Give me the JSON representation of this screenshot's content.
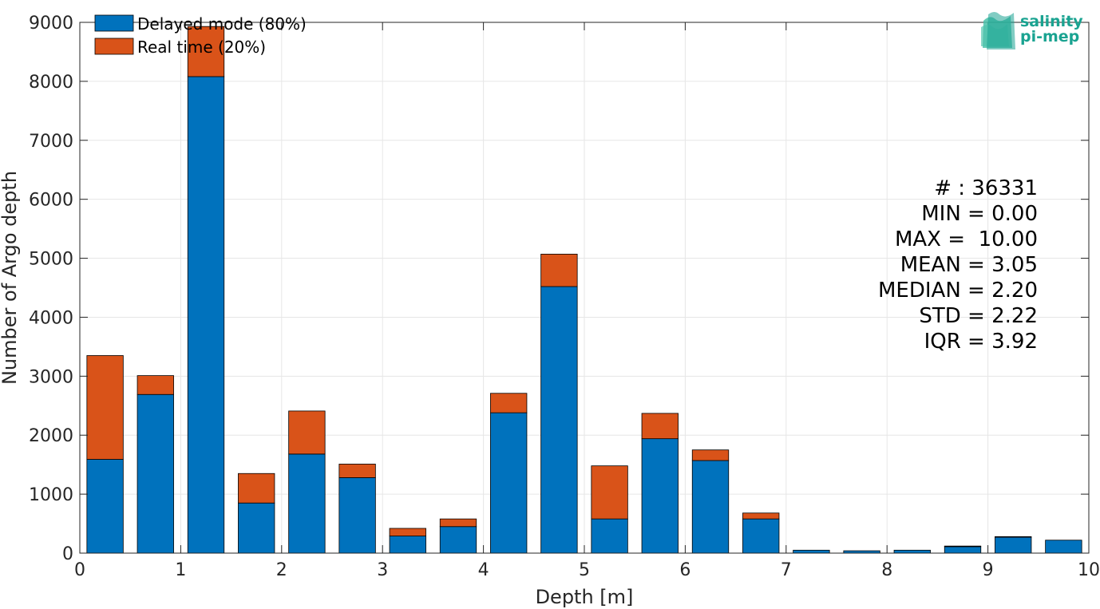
{
  "chart_data": {
    "type": "bar",
    "stacked": true,
    "xlabel": "Depth [m]",
    "ylabel": "Number of Argo depth",
    "xlim": [
      0,
      10
    ],
    "ylim": [
      0,
      9000
    ],
    "xticks": [
      "0",
      "1",
      "2",
      "3",
      "4",
      "5",
      "6",
      "7",
      "8",
      "9",
      "10"
    ],
    "yticks": [
      "0",
      "1000",
      "2000",
      "3000",
      "4000",
      "5000",
      "6000",
      "7000",
      "8000",
      "9000"
    ],
    "grid": true,
    "legend_position": "top-left",
    "bin_width": 0.5,
    "bin_centers": [
      0.25,
      0.75,
      1.25,
      1.75,
      2.25,
      2.75,
      3.25,
      3.75,
      4.25,
      4.75,
      5.25,
      5.75,
      6.25,
      6.75,
      7.25,
      7.75,
      8.25,
      8.75,
      9.25,
      9.75
    ],
    "series": [
      {
        "name": "Delayed mode (80%)",
        "color": "#0072BD",
        "values": [
          1590,
          2690,
          8080,
          850,
          1680,
          1280,
          290,
          450,
          2380,
          4520,
          580,
          1940,
          1570,
          580,
          50,
          40,
          50,
          110,
          270,
          220
        ]
      },
      {
        "name": "Real time (20%)",
        "color": "#D95319",
        "values": [
          1760,
          320,
          850,
          500,
          730,
          230,
          130,
          130,
          330,
          550,
          900,
          430,
          180,
          100,
          0,
          0,
          0,
          10,
          10,
          0
        ]
      }
    ],
    "annotations": [
      "# : 36331",
      "MIN = 0.00",
      "MAX =  10.00",
      "MEAN = 3.05",
      "MEDIAN = 2.20",
      "STD = 2.22",
      "IQR = 3.92"
    ]
  },
  "logo": {
    "line1": "salinity",
    "line2": "pi-mep",
    "color": "#1aa391"
  }
}
